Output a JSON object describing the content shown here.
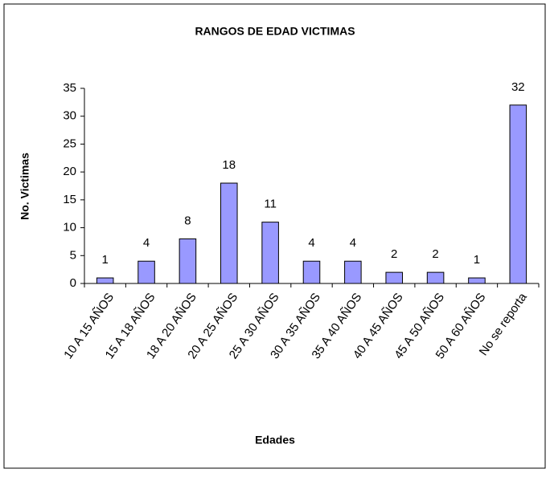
{
  "chart_data": {
    "type": "bar",
    "title": "RANGOS DE EDAD VICTIMAS",
    "categories": [
      "10 A 15 AÑOS",
      "15 A 18 AÑOS",
      "18 A 20 AÑOS",
      "20 A 25 AÑOS",
      "25 A 30 AÑOS",
      "30 A 35 AÑOS",
      "35 A 40 AÑOS",
      "40 A 45 AÑOS",
      "45 A 50 AÑOS",
      "50 A 60 AÑOS",
      "No se reporta"
    ],
    "values": [
      1,
      4,
      8,
      18,
      11,
      4,
      4,
      2,
      2,
      1,
      32
    ],
    "color": "#9999ff",
    "ylim": [
      0,
      35
    ],
    "yticks": [
      0,
      5,
      10,
      15,
      20,
      25,
      30,
      35
    ],
    "x_label": "Edades",
    "y_label": "No. Victimas",
    "grid": false
  }
}
